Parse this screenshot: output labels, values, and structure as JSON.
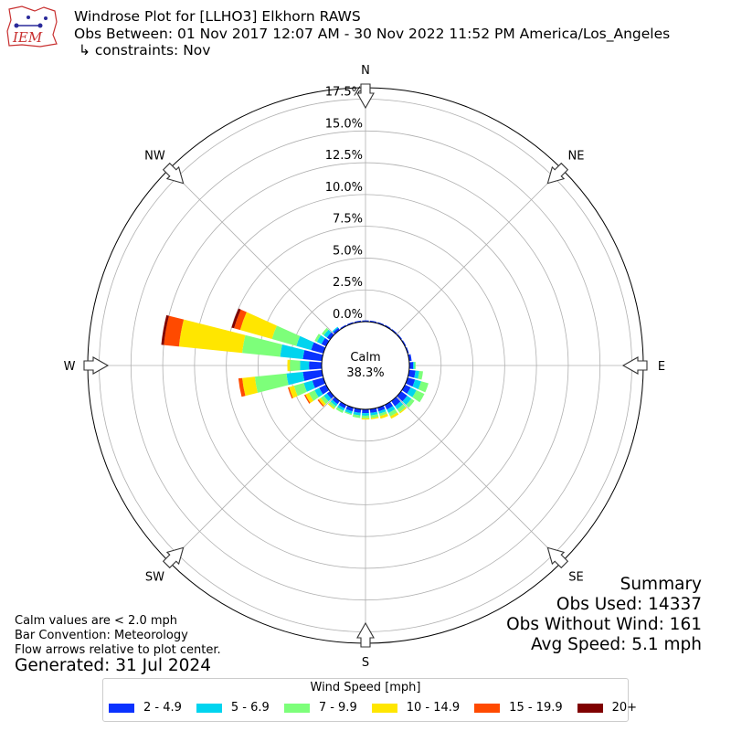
{
  "header": {
    "logo_text": "IEM",
    "title_line1": "Windrose Plot for [LLHO3] Elkhorn RAWS",
    "title_line2": "Obs Between: 01 Nov 2017 12:07 AM - 30 Nov 2022 11:52 PM America/Los_Angeles",
    "title_line3": "↳ constraints: Nov"
  },
  "summary": {
    "heading": "Summary",
    "obs_used": "Obs Used: 14337",
    "obs_without_wind": "Obs Without Wind: 161",
    "avg_speed": "Avg Speed: 5.1 mph"
  },
  "notes": {
    "calm_def": "Calm values are < 2.0 mph",
    "bar_convention": "Bar Convention: Meteorology",
    "flow_arrows": "Flow arrows relative to plot center.",
    "generated": "Generated: 31 Jul 2024"
  },
  "chart_data": {
    "type": "windrose",
    "calm_label": "Calm",
    "calm_pct": "38.3%",
    "radial_ticks": [
      "0.0%",
      "2.5%",
      "5.0%",
      "7.5%",
      "10.0%",
      "12.5%",
      "15.0%",
      "17.5%"
    ],
    "radial_max": 18.4,
    "directions": [
      "N",
      "NE",
      "E",
      "SE",
      "S",
      "SW",
      "W",
      "NW"
    ],
    "legend_title": "Wind Speed [mph]",
    "speed_bins": [
      "2 - 4.9",
      "5 - 6.9",
      "7 - 9.9",
      "10 - 14.9",
      "15 - 19.9",
      "20+"
    ],
    "colors": [
      "#0a32ff",
      "#00d4ef",
      "#7dff7a",
      "#ffe600",
      "#ff4a00",
      "#7f0000"
    ],
    "sectors": [
      {
        "dir": 0,
        "values": [
          0.1,
          0.0,
          0.0,
          0.0,
          0.0,
          0.0
        ]
      },
      {
        "dir": 10,
        "values": [
          0.1,
          0.0,
          0.0,
          0.0,
          0.0,
          0.0
        ]
      },
      {
        "dir": 20,
        "values": [
          0.1,
          0.0,
          0.0,
          0.0,
          0.0,
          0.0
        ]
      },
      {
        "dir": 30,
        "values": [
          0.1,
          0.0,
          0.0,
          0.0,
          0.0,
          0.0
        ]
      },
      {
        "dir": 40,
        "values": [
          0.1,
          0.0,
          0.0,
          0.0,
          0.0,
          0.0
        ]
      },
      {
        "dir": 50,
        "values": [
          0.1,
          0.0,
          0.0,
          0.0,
          0.0,
          0.0
        ]
      },
      {
        "dir": 60,
        "values": [
          0.1,
          0.0,
          0.0,
          0.0,
          0.0,
          0.0
        ]
      },
      {
        "dir": 70,
        "values": [
          0.1,
          0.0,
          0.0,
          0.0,
          0.0,
          0.0
        ]
      },
      {
        "dir": 80,
        "values": [
          0.2,
          0.0,
          0.0,
          0.0,
          0.0,
          0.0
        ]
      },
      {
        "dir": 90,
        "values": [
          0.3,
          0.1,
          0.1,
          0.0,
          0.0,
          0.0
        ]
      },
      {
        "dir": 100,
        "values": [
          0.5,
          0.3,
          0.3,
          0.0,
          0.0,
          0.0
        ]
      },
      {
        "dir": 110,
        "values": [
          0.6,
          0.5,
          0.6,
          0.0,
          0.0,
          0.0
        ]
      },
      {
        "dir": 120,
        "values": [
          0.5,
          0.5,
          0.7,
          0.0,
          0.0,
          0.0
        ]
      },
      {
        "dir": 130,
        "values": [
          0.6,
          0.4,
          0.3,
          0.0,
          0.0,
          0.0
        ]
      },
      {
        "dir": 140,
        "values": [
          0.5,
          0.3,
          0.3,
          0.1,
          0.0,
          0.0
        ]
      },
      {
        "dir": 150,
        "values": [
          0.4,
          0.3,
          0.3,
          0.2,
          0.0,
          0.0
        ]
      },
      {
        "dir": 160,
        "values": [
          0.3,
          0.2,
          0.2,
          0.2,
          0.0,
          0.0
        ]
      },
      {
        "dir": 170,
        "values": [
          0.3,
          0.2,
          0.2,
          0.1,
          0.0,
          0.0
        ]
      },
      {
        "dir": 180,
        "values": [
          0.3,
          0.2,
          0.2,
          0.1,
          0.0,
          0.0
        ]
      },
      {
        "dir": 190,
        "values": [
          0.3,
          0.2,
          0.2,
          0.0,
          0.0,
          0.0
        ]
      },
      {
        "dir": 200,
        "values": [
          0.3,
          0.2,
          0.1,
          0.0,
          0.0,
          0.0
        ]
      },
      {
        "dir": 210,
        "values": [
          0.3,
          0.2,
          0.2,
          0.0,
          0.0,
          0.0
        ]
      },
      {
        "dir": 220,
        "values": [
          0.3,
          0.2,
          0.2,
          0.1,
          0.0,
          0.0
        ]
      },
      {
        "dir": 230,
        "values": [
          0.3,
          0.3,
          0.3,
          0.2,
          0.1,
          0.0
        ]
      },
      {
        "dir": 240,
        "values": [
          0.6,
          0.4,
          0.5,
          0.3,
          0.1,
          0.0
        ]
      },
      {
        "dir": 250,
        "values": [
          0.9,
          0.7,
          0.8,
          0.4,
          0.1,
          0.0
        ]
      },
      {
        "dir": 260,
        "values": [
          1.5,
          1.3,
          2.5,
          1.0,
          0.3,
          0.0
        ]
      },
      {
        "dir": 270,
        "values": [
          1.0,
          0.7,
          0.8,
          0.2,
          0.0,
          0.0
        ]
      },
      {
        "dir": 280,
        "values": [
          1.5,
          1.8,
          3.0,
          5.0,
          1.2,
          0.2
        ]
      },
      {
        "dir": 290,
        "values": [
          1.0,
          1.2,
          2.0,
          2.6,
          0.5,
          0.2
        ]
      },
      {
        "dir": 300,
        "values": [
          0.4,
          0.4,
          0.2,
          0.0,
          0.0,
          0.0
        ]
      },
      {
        "dir": 310,
        "values": [
          0.3,
          0.3,
          0.2,
          0.0,
          0.0,
          0.0
        ]
      },
      {
        "dir": 320,
        "values": [
          0.2,
          0.1,
          0.0,
          0.0,
          0.0,
          0.0
        ]
      },
      {
        "dir": 330,
        "values": [
          0.1,
          0.0,
          0.0,
          0.0,
          0.0,
          0.0
        ]
      },
      {
        "dir": 340,
        "values": [
          0.1,
          0.0,
          0.0,
          0.0,
          0.0,
          0.0
        ]
      },
      {
        "dir": 350,
        "values": [
          0.1,
          0.0,
          0.0,
          0.0,
          0.0,
          0.0
        ]
      }
    ]
  }
}
